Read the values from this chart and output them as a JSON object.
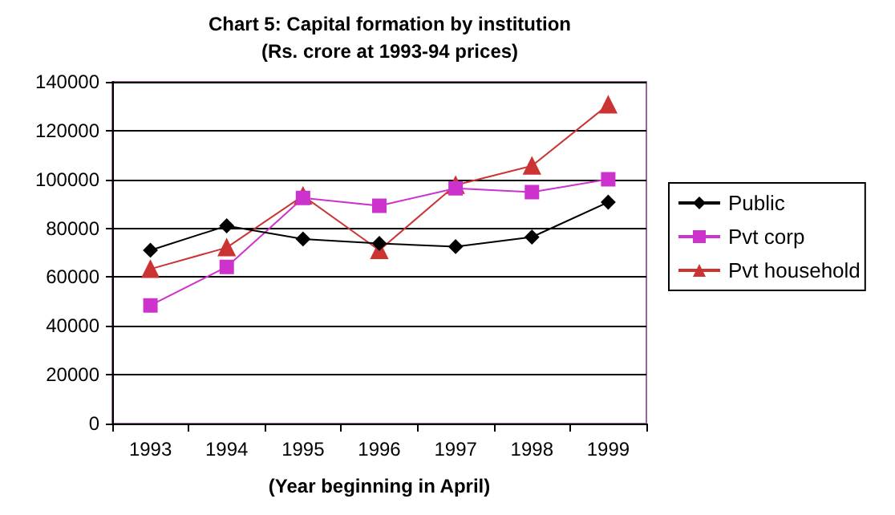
{
  "chart_data": {
    "type": "line",
    "title": "Chart 5: Capital formation by institution",
    "subtitle": "(Rs. crore at 1993-94 prices)",
    "xlabel": "(Year beginning in April)",
    "categories": [
      "1993",
      "1994",
      "1995",
      "1996",
      "1997",
      "1998",
      "1999"
    ],
    "series": [
      {
        "name": "Public",
        "color": "#000000",
        "marker": "diamond",
        "values": [
          71000,
          81000,
          75600,
          73800,
          72500,
          76400,
          90700
        ]
      },
      {
        "name": "Pvt corp",
        "color": "#cc33cc",
        "marker": "square",
        "values": [
          48400,
          64200,
          92400,
          89200,
          96400,
          94800,
          100100
        ]
      },
      {
        "name": "Pvt household",
        "color": "#cc3333",
        "marker": "triangle",
        "values": [
          63300,
          72100,
          93300,
          71000,
          97700,
          105600,
          130600
        ]
      }
    ],
    "ylim": [
      0,
      140000
    ],
    "yticks": [
      0,
      20000,
      40000,
      60000,
      80000,
      100000,
      120000,
      140000
    ],
    "grid": "y",
    "legend": "right",
    "line_style": "solid"
  }
}
